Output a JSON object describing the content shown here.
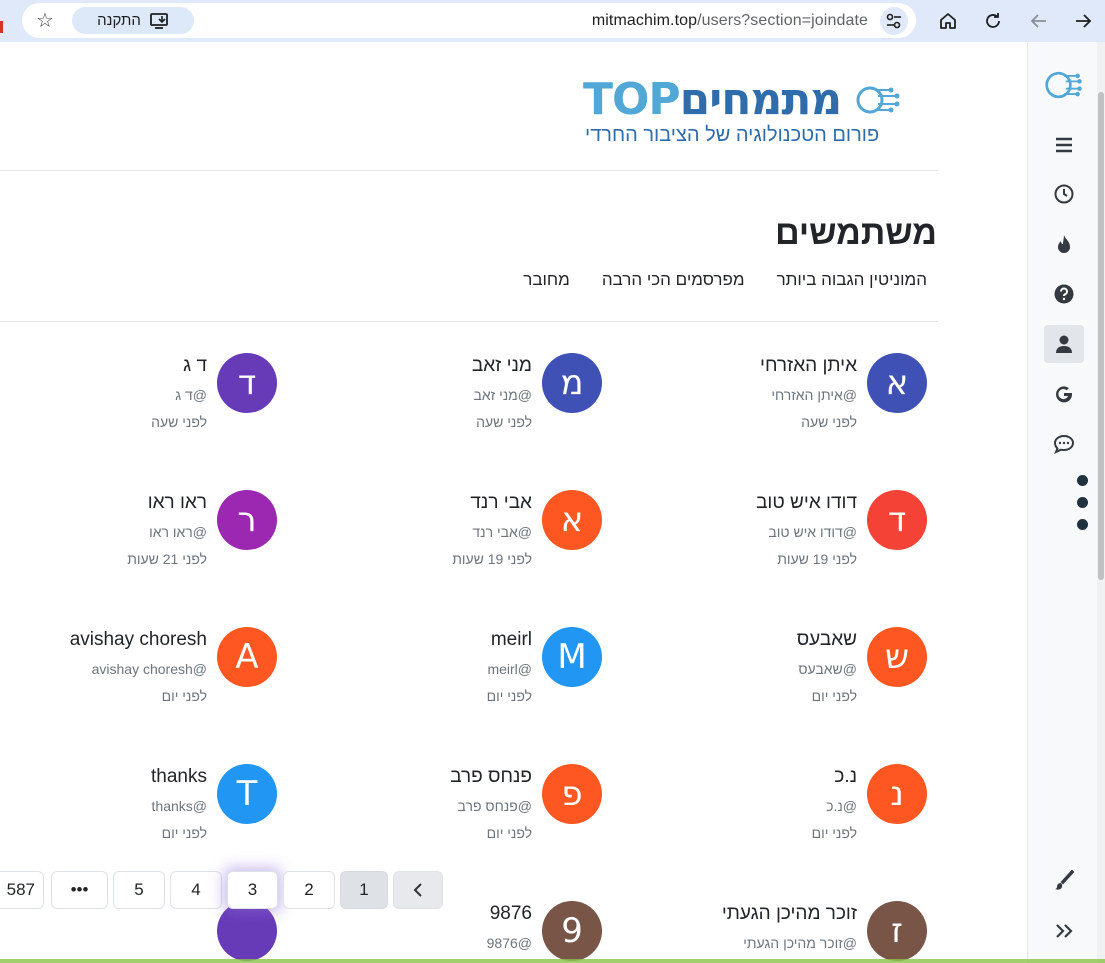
{
  "browser": {
    "url_host": "mitmachim.top",
    "url_path": "/users?section=joindate",
    "install_label": "התקנה",
    "icons": {
      "forward": "arrow-right-icon",
      "back": "arrow-left-icon",
      "reload": "reload-icon",
      "home": "home-icon",
      "site_settings": "tune-icon",
      "install": "install-app-icon",
      "bookmark": "star-icon"
    }
  },
  "logo": {
    "brand_hebrew": "מתמחים",
    "brand_latin": "TOP",
    "tagline": "פורום הטכנולוגיה של הציבור החרדי",
    "colors": {
      "light": "#51a7d6",
      "dark": "#2f6cab"
    }
  },
  "page": {
    "title": "משתמשים",
    "tabs": [
      {
        "label": "מחובר"
      },
      {
        "label": "מפרסמים הכי הרבה"
      },
      {
        "label": "המוניטין הגבוה ביותר"
      }
    ]
  },
  "users": [
    {
      "letter": "א",
      "name": "איתן האזרחי",
      "slug": "@איתן האזרחי",
      "time": "לפני שעה",
      "color": "#3f51b5"
    },
    {
      "letter": "מ",
      "name": "מני זאב",
      "slug": "@מני זאב",
      "time": "לפני שעה",
      "color": "#3f51b5"
    },
    {
      "letter": "ד",
      "name": "ד ג",
      "slug": "@ד ג",
      "time": "לפני שעה",
      "color": "#673ab7"
    },
    {
      "letter": "ד",
      "name": "דודו איש טוב",
      "slug": "@דודו איש טוב",
      "time": "לפני 19 שעות",
      "color": "#f44336"
    },
    {
      "letter": "א",
      "name": "אבי רנד",
      "slug": "@אבי רנד",
      "time": "לפני 19 שעות",
      "color": "#ff5722"
    },
    {
      "letter": "ר",
      "name": "ראו ראו",
      "slug": "@ראו ראו",
      "time": "לפני 21 שעות",
      "color": "#9c27b0"
    },
    {
      "letter": "ש",
      "name": "שאבעס",
      "slug": "@שאבעס",
      "time": "לפני יום",
      "color": "#ff5722"
    },
    {
      "letter": "M",
      "name": "meirl",
      "slug": "@meirl",
      "time": "לפני יום",
      "color": "#2196f3"
    },
    {
      "letter": "A",
      "name": "avishay choresh",
      "slug": "@avishay choresh",
      "time": "לפני יום",
      "color": "#ff5722"
    },
    {
      "letter": "נ",
      "name": "נ.כ",
      "slug": "@נ.כ",
      "time": "לפני יום",
      "color": "#ff5722"
    },
    {
      "letter": "פ",
      "name": "פנחס פרב",
      "slug": "@פנחס פרב",
      "time": "לפני יום",
      "color": "#ff5722"
    },
    {
      "letter": "T",
      "name": "thanks",
      "slug": "@thanks",
      "time": "לפני יום",
      "color": "#2196f3"
    },
    {
      "letter": "ז",
      "name": "זוכר מהיכן הגעתי",
      "slug": "@זוכר מהיכן הגעתי",
      "time": "",
      "color": "#795548"
    },
    {
      "letter": "9",
      "name": "9876",
      "slug": "@9876",
      "time": "",
      "color": "#795548"
    },
    {
      "letter": "",
      "name": "",
      "slug": "",
      "time": "",
      "color": "#673ab7"
    }
  ],
  "pagination": {
    "prev_icon": "chevron-left-icon",
    "pages": [
      "1",
      "2",
      "3",
      "4",
      "5"
    ],
    "ellipsis": "•••",
    "last": "587",
    "active": "1"
  },
  "sidebar": {
    "items": [
      {
        "name": "logo-icon"
      },
      {
        "name": "menu-icon"
      },
      {
        "name": "recent-icon"
      },
      {
        "name": "popular-icon"
      },
      {
        "name": "help-icon"
      },
      {
        "name": "users-icon",
        "active": true
      },
      {
        "name": "google-icon"
      },
      {
        "name": "chat-icon"
      },
      {
        "name": "skin-brush-icon"
      },
      {
        "name": "expand-icon"
      }
    ]
  }
}
